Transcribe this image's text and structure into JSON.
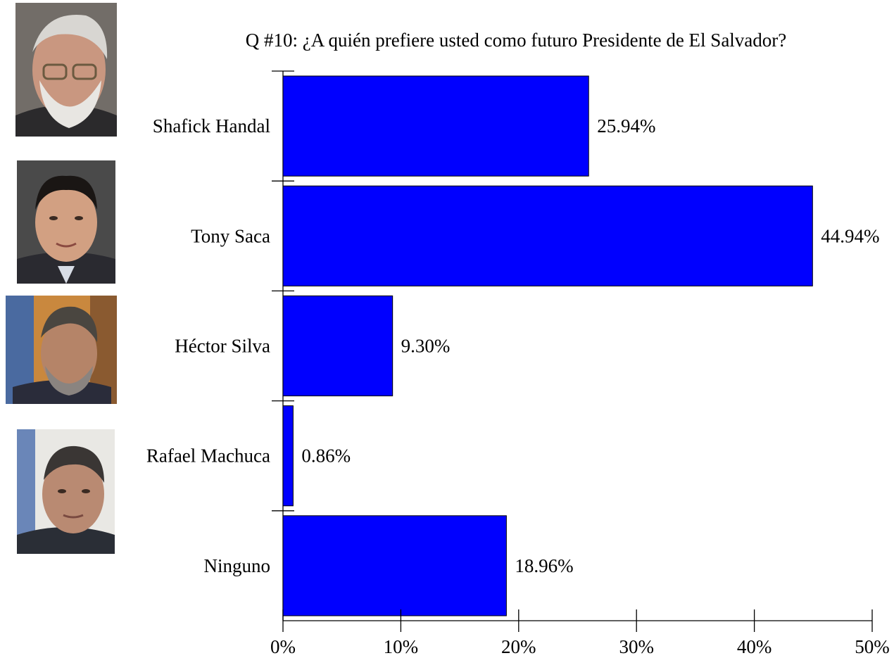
{
  "chart_data": {
    "type": "bar",
    "orientation": "horizontal",
    "title": "Q #10: ¿A quién prefiere usted como futuro Presidente de El Salvador?",
    "categories": [
      "Shafick Handal",
      "Tony Saca",
      "Héctor Silva",
      "Rafael Machuca",
      "Ninguno"
    ],
    "values": [
      25.94,
      44.94,
      9.3,
      0.86,
      18.96
    ],
    "value_labels": [
      "25.94%",
      "44.94%",
      "9.30%",
      "0.86%",
      "18.96%"
    ],
    "xlim": [
      0,
      50
    ],
    "xticks": [
      0,
      10,
      20,
      30,
      40,
      50
    ],
    "xtick_labels": [
      "0%",
      "10%",
      "20%",
      "30%",
      "40%",
      "50%"
    ],
    "bar_color": "#0000ff",
    "grid": false,
    "legend": "none"
  },
  "photos": [
    {
      "name": "Shafick Handal",
      "icon": "portrait-photo"
    },
    {
      "name": "Tony Saca",
      "icon": "portrait-photo"
    },
    {
      "name": "Héctor Silva",
      "icon": "portrait-photo"
    },
    {
      "name": "Rafael Machuca",
      "icon": "portrait-photo"
    }
  ]
}
